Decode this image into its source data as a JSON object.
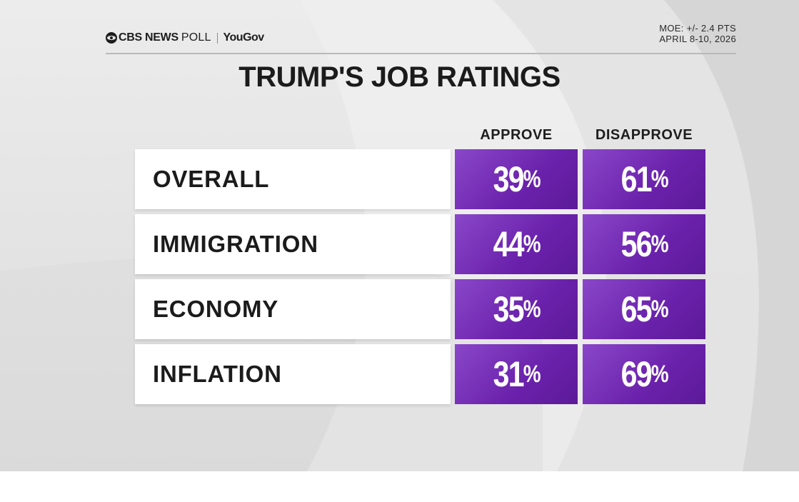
{
  "header": {
    "logo_cbs": "CBS NEWS",
    "logo_poll": "POLL",
    "logo_partner": "YouGov",
    "moe": "MOE: +/- 2.4 PTS",
    "dates": "APRIL 8-10, 2026"
  },
  "colors": {
    "purple_light": "#8a47c9",
    "purple_dark": "#5c1a98",
    "text_dark": "#1b1b1b"
  },
  "chart_data": {
    "type": "table",
    "title": "TRUMP'S JOB RATINGS",
    "columns": [
      "APPROVE",
      "DISAPPROVE"
    ],
    "rows": [
      {
        "label": "OVERALL",
        "approve": 39,
        "disapprove": 61
      },
      {
        "label": "IMMIGRATION",
        "approve": 44,
        "disapprove": 56
      },
      {
        "label": "ECONOMY",
        "approve": 35,
        "disapprove": 65
      },
      {
        "label": "INFLATION",
        "approve": 31,
        "disapprove": 69
      }
    ],
    "unit": "%"
  }
}
